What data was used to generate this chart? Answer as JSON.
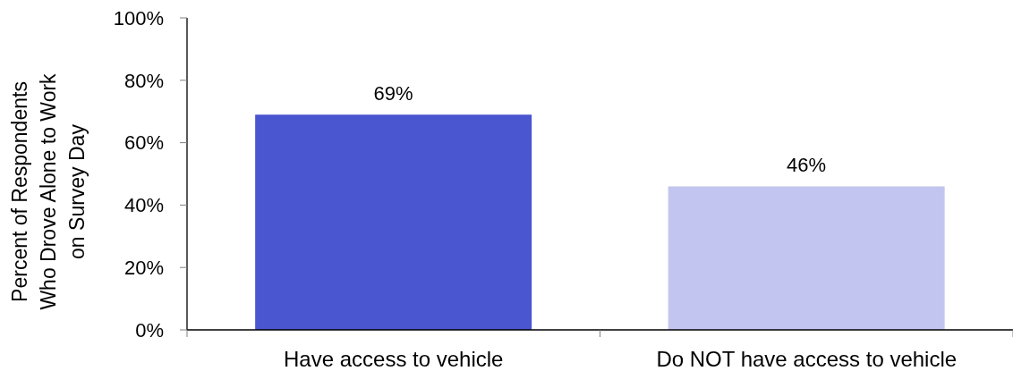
{
  "chart_data": {
    "type": "bar",
    "ylabel": "Percent of Respondents Who Drove Alone to Work on Survey Day",
    "categories": [
      "Have access to vehicle",
      "Do NOT have access to vehicle"
    ],
    "values": [
      69,
      46
    ],
    "colors": [
      "#4a55d0",
      "#c2c5ef"
    ],
    "value_labels": [
      "69%",
      "46%"
    ],
    "ylim": [
      0,
      100
    ],
    "yticks": [
      {
        "value": 0,
        "label": "0%"
      },
      {
        "value": 20,
        "label": "20%"
      },
      {
        "value": 40,
        "label": "40%"
      },
      {
        "value": 60,
        "label": "60%"
      },
      {
        "value": 80,
        "label": "80%"
      },
      {
        "value": 100,
        "label": "100%"
      }
    ]
  }
}
